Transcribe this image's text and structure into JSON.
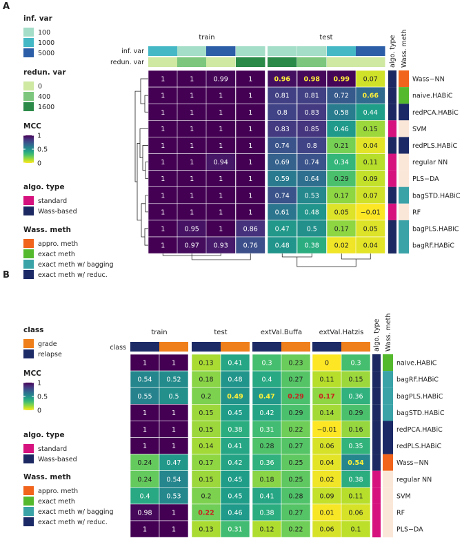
{
  "chart_data": [
    {
      "type": "heatmap",
      "panel_label": "A",
      "groups": [
        "train",
        "test"
      ],
      "columns_per_group": 4,
      "annotation_rows": [
        {
          "label": "inf. var",
          "values": [
            1000,
            100,
            5000,
            100,
            100,
            100,
            1000,
            5000
          ]
        },
        {
          "label": "redun. var",
          "values": [
            0,
            400,
            0,
            1600,
            1600,
            400,
            0,
            0
          ]
        }
      ],
      "rows": [
        "Wass−NN",
        "naive.HABiC",
        "redPCA.HABiC",
        "SVM",
        "redPLS.HABiC",
        "regular NN",
        "PLS−DA",
        "bagSTD.HABiC",
        "RF",
        "bagPLS.HABiC",
        "bagRF.HABiC"
      ],
      "values": [
        [
          "1",
          "1",
          "0.99",
          "1",
          "0.96",
          "0.98",
          "0.99",
          "0.07"
        ],
        [
          "1",
          "1",
          "1",
          "1",
          "0.81",
          "0.81",
          "0.72",
          "0.66"
        ],
        [
          "1",
          "1",
          "1",
          "1",
          "0.8",
          "0.83",
          "0.58",
          "0.44"
        ],
        [
          "1",
          "1",
          "1",
          "1",
          "0.83",
          "0.85",
          "0.46",
          "0.15"
        ],
        [
          "1",
          "1",
          "1",
          "1",
          "0.74",
          "0.8",
          "0.21",
          "0.04"
        ],
        [
          "1",
          "1",
          "0.94",
          "1",
          "0.69",
          "0.74",
          "0.34",
          "0.11"
        ],
        [
          "1",
          "1",
          "1",
          "1",
          "0.59",
          "0.64",
          "0.29",
          "0.09"
        ],
        [
          "1",
          "1",
          "1",
          "1",
          "0.74",
          "0.53",
          "0.17",
          "0.07"
        ],
        [
          "1",
          "1",
          "1",
          "1",
          "0.61",
          "0.48",
          "0.05",
          "−0.01"
        ],
        [
          "1",
          "0.95",
          "1",
          "0.86",
          "0.47",
          "0.5",
          "0.17",
          "0.05"
        ],
        [
          "1",
          "0.97",
          "0.93",
          "0.76",
          "0.48",
          "0.38",
          "0.02",
          "0.04"
        ]
      ],
      "highlights": [
        {
          "row": 0,
          "col": 4,
          "color": "#fff13a"
        },
        {
          "row": 0,
          "col": 5,
          "color": "#fff13a"
        },
        {
          "row": 0,
          "col": 6,
          "color": "#fff13a"
        },
        {
          "row": 1,
          "col": 7,
          "color": "#fff13a"
        }
      ],
      "algo_type": [
        "Wass-based",
        "Wass-based",
        "Wass-based",
        "standard",
        "Wass-based",
        "standard",
        "standard",
        "Wass-based",
        "standard",
        "Wass-based",
        "Wass-based"
      ],
      "wass_meth": [
        "appro. meth",
        "exact meth",
        "exact meth w/ reduc.",
        "none",
        "exact meth w/ reduc.",
        "none",
        "none",
        "exact meth w/ bagging",
        "none",
        "exact meth w/ bagging",
        "exact meth w/ bagging"
      ],
      "side_labels": [
        "algo. type",
        "Wass. meth"
      ],
      "legends": {
        "inf_var": {
          "title": "inf. var",
          "items": [
            "100",
            "1000",
            "5000"
          ]
        },
        "redun_var": {
          "title": "redun. var",
          "items": [
            "0",
            "400",
            "1600"
          ]
        },
        "mcc": {
          "title": "MCC",
          "ticks": [
            "1",
            "0.5",
            "0"
          ]
        },
        "algo_type": {
          "title": "algo. type",
          "items": [
            "standard",
            "Wass-based"
          ]
        },
        "wass_meth": {
          "title": "Wass. meth",
          "items": [
            "appro. meth",
            "exact meth",
            "exact meth w/ bagging",
            "exact meth w/ reduc."
          ]
        }
      }
    },
    {
      "type": "heatmap",
      "panel_label": "B",
      "groups": [
        "train",
        "test",
        "extVal.Buffa",
        "extVal.Hatzis"
      ],
      "columns_per_group": 2,
      "annotation_rows": [
        {
          "label": "class",
          "values": [
            "relapse",
            "grade",
            "relapse",
            "grade",
            "relapse",
            "grade",
            "relapse",
            "grade"
          ]
        }
      ],
      "rows": [
        "naive.HABiC",
        "bagRF.HABiC",
        "bagPLS.HABiC",
        "bagSTD.HABiC",
        "redPCA.HABiC",
        "redPLS.HABiC",
        "Wass−NN",
        "regular NN",
        "SVM",
        "RF",
        "PLS−DA"
      ],
      "values": [
        [
          "1",
          "1",
          "0.13",
          "0.41",
          "0.3",
          "0.23",
          "0",
          "0.3"
        ],
        [
          "0.54",
          "0.52",
          "0.18",
          "0.48",
          "0.4",
          "0.27",
          "0.11",
          "0.15"
        ],
        [
          "0.55",
          "0.5",
          "0.2",
          "0.49",
          "0.47",
          "0.29",
          "0.17",
          "0.36"
        ],
        [
          "1",
          "1",
          "0.15",
          "0.45",
          "0.42",
          "0.29",
          "0.14",
          "0.29"
        ],
        [
          "1",
          "1",
          "0.15",
          "0.38",
          "0.31",
          "0.22",
          "−0.01",
          "0.16"
        ],
        [
          "1",
          "1",
          "0.14",
          "0.41",
          "0.28",
          "0.27",
          "0.06",
          "0.35"
        ],
        [
          "0.24",
          "0.47",
          "0.17",
          "0.42",
          "0.36",
          "0.25",
          "0.04",
          "0.54"
        ],
        [
          "0.24",
          "0.54",
          "0.15",
          "0.45",
          "0.18",
          "0.25",
          "0.02",
          "0.38"
        ],
        [
          "0.4",
          "0.53",
          "0.2",
          "0.45",
          "0.41",
          "0.28",
          "0.09",
          "0.11"
        ],
        [
          "0.98",
          "1",
          "0.22",
          "0.46",
          "0.38",
          "0.27",
          "0.01",
          "0.06"
        ],
        [
          "1",
          "1",
          "0.13",
          "0.31",
          "0.12",
          "0.22",
          "0.06",
          "0.1"
        ]
      ],
      "highlights": [
        {
          "row": 2,
          "col": 3,
          "color": "#fff13a"
        },
        {
          "row": 2,
          "col": 4,
          "color": "#fff13a"
        },
        {
          "row": 2,
          "col": 5,
          "color": "#c8201e"
        },
        {
          "row": 2,
          "col": 6,
          "color": "#c8201e"
        },
        {
          "row": 6,
          "col": 7,
          "color": "#fff13a"
        },
        {
          "row": 9,
          "col": 2,
          "color": "#c8201e"
        }
      ],
      "algo_type": [
        "Wass-based",
        "Wass-based",
        "Wass-based",
        "Wass-based",
        "Wass-based",
        "Wass-based",
        "Wass-based",
        "standard",
        "standard",
        "standard",
        "standard"
      ],
      "wass_meth": [
        "exact meth",
        "exact meth w/ bagging",
        "exact meth w/ bagging",
        "exact meth w/ bagging",
        "exact meth w/ reduc.",
        "exact meth w/ reduc.",
        "appro. meth",
        "none",
        "none",
        "none",
        "none"
      ],
      "side_labels": [
        "algo. type",
        "Wass. meth"
      ],
      "legends": {
        "class": {
          "title": "class",
          "items": [
            "grade",
            "relapse"
          ]
        },
        "mcc": {
          "title": "MCC",
          "ticks": [
            "1",
            "0.5",
            "0"
          ]
        },
        "algo_type": {
          "title": "algo. type",
          "items": [
            "standard",
            "Wass-based"
          ]
        },
        "wass_meth": {
          "title": "Wass. meth",
          "items": [
            "appro. meth",
            "exact meth",
            "exact meth w/ bagging",
            "exact meth w/ reduc."
          ]
        }
      }
    }
  ],
  "colors": {
    "inf_var": {
      "100": "#a4ddc8",
      "1000": "#45b8c6",
      "5000": "#2b5ea7"
    },
    "redun_var": {
      "0": "#cfe8a2",
      "400": "#7cc77d",
      "1600": "#2c8a49"
    },
    "class": {
      "grade": "#ef7f1a",
      "relapse": "#1c2a66"
    },
    "algo_type": {
      "standard": "#d6127e",
      "Wass-based": "#1b2861"
    },
    "wass_meth": {
      "appro. meth": "#f0641c",
      "exact meth": "#55b92e",
      "exact meth w/ bagging": "#3aa3a8",
      "exact meth w/ reduc.": "#1b2a66",
      "none": "#fbe7d8"
    }
  }
}
